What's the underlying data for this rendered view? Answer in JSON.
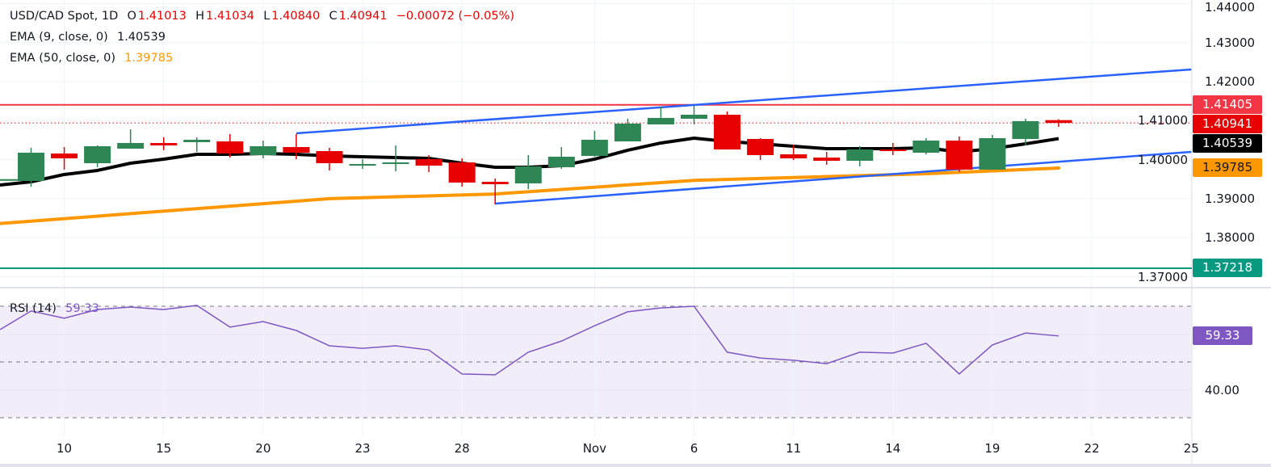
{
  "header": {
    "symbol": "USD/CAD Spot, 1D",
    "open_label": "O",
    "open": "1.41013",
    "high_label": "H",
    "high": "1.41034",
    "low_label": "L",
    "low": "1.40840",
    "close_label": "C",
    "close": "1.40941",
    "change": "−0.00072 (−0.05%)"
  },
  "indicators": {
    "ema9": {
      "label": "EMA (9, close, 0)",
      "value": "1.40539",
      "color": "#000000"
    },
    "ema50": {
      "label": "EMA (50, close, 0)",
      "value": "1.39785",
      "color": "#ff9800"
    },
    "rsi": {
      "label": "RSI (14)",
      "value": "59.33",
      "color": "#7e57c2"
    }
  },
  "price_axis": {
    "ticks": [
      "1.44000",
      "1.43000",
      "1.42000",
      "1.41000",
      "1.40000",
      "1.39000",
      "1.38000",
      "1.37000"
    ],
    "badges": [
      {
        "text": "1.41405",
        "price": 1.41405,
        "color": "#f23645"
      },
      {
        "text": "1.40941",
        "price": 1.40941,
        "color": "#e60000"
      },
      {
        "text": "1.40539",
        "price": 1.40539,
        "color": "#000000"
      },
      {
        "text": "1.39785",
        "price": 1.39785,
        "color": "#ff9800",
        "text_color": "#131722"
      },
      {
        "text": "1.37218",
        "price": 1.37218,
        "color": "#089981"
      }
    ]
  },
  "rsi_axis": {
    "ticks": [
      "40.00"
    ],
    "badge": "59.33"
  },
  "time_axis": [
    {
      "label": "10",
      "bar": 2
    },
    {
      "label": "15",
      "bar": 5
    },
    {
      "label": "20",
      "bar": 8
    },
    {
      "label": "23",
      "bar": 11
    },
    {
      "label": "28",
      "bar": 14
    },
    {
      "label": "Nov",
      "bar": 18
    },
    {
      "label": "6",
      "bar": 21
    },
    {
      "label": "11",
      "bar": 24
    },
    {
      "label": "14",
      "bar": 27
    },
    {
      "label": "19",
      "bar": 30
    },
    {
      "label": "22",
      "bar": 33
    },
    {
      "label": "25",
      "bar": 36
    }
  ],
  "chart_data": {
    "type": "candlestick",
    "ylim": [
      1.37,
      1.44
    ],
    "up_color": "#2e8655",
    "down_color": "#e60000",
    "candles": [
      [
        1.39494,
        1.395,
        1.3949,
        1.395
      ],
      [
        1.39454,
        1.40303,
        1.39309,
        1.40178
      ],
      [
        1.40158,
        1.40323,
        1.39744,
        1.40033
      ],
      [
        1.39909,
        1.40365,
        1.39806,
        1.40344
      ],
      [
        1.40282,
        1.40779,
        1.40282,
        1.40427
      ],
      [
        1.40427,
        1.40572,
        1.40241,
        1.40365
      ],
      [
        1.40448,
        1.40572,
        1.40199,
        1.4051
      ],
      [
        1.40468,
        1.40655,
        1.40054,
        1.40158
      ],
      [
        1.40116,
        1.40489,
        1.40033,
        1.40344
      ],
      [
        1.40323,
        1.40655,
        1.40013,
        1.40178
      ],
      [
        1.4022,
        1.40303,
        1.39723,
        1.39909
      ],
      [
        1.39847,
        1.40013,
        1.39764,
        1.39889
      ],
      [
        1.39909,
        1.40365,
        1.39702,
        1.3993
      ],
      [
        1.40013,
        1.40116,
        1.39682,
        1.39847
      ],
      [
        1.3993,
        1.40033,
        1.39309,
        1.39413
      ],
      [
        1.39433,
        1.39516,
        1.38854,
        1.39371
      ],
      [
        1.39392,
        1.40116,
        1.39247,
        1.39827
      ],
      [
        1.39806,
        1.40323,
        1.39764,
        1.40075
      ],
      [
        1.40096,
        1.40737,
        1.40075,
        1.4051
      ],
      [
        1.40468,
        1.41048,
        1.40468,
        1.40924
      ],
      [
        1.40903,
        1.41358,
        1.40903,
        1.41069
      ],
      [
        1.41048,
        1.41379,
        1.40903,
        1.41151
      ],
      [
        1.41151,
        1.41234,
        1.40261,
        1.40261
      ],
      [
        1.4053,
        1.40551,
        1.39992,
        1.40116
      ],
      [
        1.40137,
        1.40385,
        1.39992,
        1.40033
      ],
      [
        1.40054,
        1.40199,
        1.39868,
        1.39971
      ],
      [
        1.39971,
        1.40344,
        1.39827,
        1.40261
      ],
      [
        1.40261,
        1.40427,
        1.40116,
        1.4022
      ],
      [
        1.40178,
        1.40551,
        1.40137,
        1.40489
      ],
      [
        1.40489,
        1.40592,
        1.39682,
        1.39744
      ],
      [
        1.39744,
        1.40634,
        1.39744,
        1.40551
      ],
      [
        1.4053,
        1.41048,
        1.40365,
        1.40986
      ],
      [
        1.41013,
        1.41034,
        1.4084,
        1.40941
      ]
    ],
    "ema9": [
      1.3935,
      1.39433,
      1.3962,
      1.39723,
      1.39909,
      1.40013,
      1.40137,
      1.40137,
      1.40158,
      1.40137,
      1.40096,
      1.40075,
      1.40054,
      1.40033,
      1.39909,
      1.39806,
      1.39806,
      1.39847,
      1.40013,
      1.40241,
      1.40427,
      1.40551,
      1.40468,
      1.40406,
      1.40344,
      1.40282,
      1.40282,
      1.40282,
      1.40303,
      1.40199,
      1.40282,
      1.40406,
      1.40539
    ],
    "ema50": [
      [
        0,
        1.3836
      ],
      [
        10,
        1.39
      ],
      [
        15,
        1.3912
      ],
      [
        21,
        1.3947
      ],
      [
        28,
        1.3964
      ],
      [
        32,
        1.39785
      ]
    ],
    "horizontal_lines": [
      {
        "price": 1.41405,
        "color": "#f23645"
      },
      {
        "price": 1.37218,
        "color": "#089981"
      }
    ],
    "current_price_line": {
      "price": 1.40941,
      "color": "#e60000"
    },
    "trendlines": [
      {
        "from": [
          9,
          1.40675
        ],
        "to": [
          36,
          1.42311
        ],
        "color": "#2962ff"
      },
      {
        "from": [
          15,
          1.38874
        ],
        "to": [
          36,
          1.40199
        ],
        "color": "#2962ff"
      }
    ],
    "rsi": {
      "ylim": [
        25,
        75
      ],
      "levels": [
        70,
        50,
        30
      ],
      "values": [
        61.6,
        68.3,
        65.7,
        68.8,
        69.7,
        68.8,
        70.3,
        62.5,
        64.5,
        61.3,
        55.8,
        54.9,
        55.8,
        54.3,
        45.7,
        45.4,
        53.5,
        57.5,
        63.0,
        68.0,
        69.4,
        70.0,
        53.5,
        51.4,
        50.6,
        49.4,
        53.5,
        53.2,
        56.7,
        45.7,
        56.1,
        60.4,
        59.33
      ]
    }
  }
}
